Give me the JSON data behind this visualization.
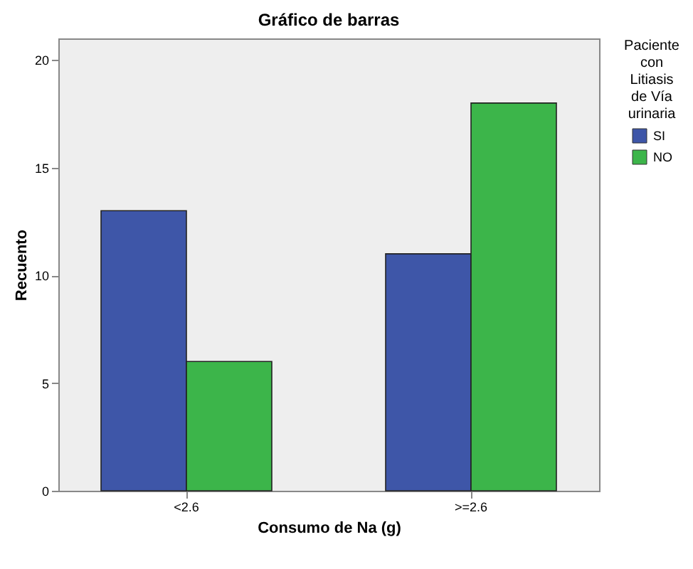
{
  "chart_data": {
    "type": "bar",
    "title": "Gráfico de barras",
    "xlabel": "Consumo de Na (g)",
    "ylabel": "Recuento",
    "legend_title": "Paciente con Litiasis de Vía urinaria",
    "categories": [
      "<2.6",
      ">=2.6"
    ],
    "series": [
      {
        "name": "SI",
        "color": "#3e56a8",
        "values": [
          13,
          11
        ]
      },
      {
        "name": "NO",
        "color": "#3cb54a",
        "values": [
          6,
          18
        ]
      }
    ],
    "ylim": [
      0,
      21
    ],
    "yticks": [
      0,
      5,
      10,
      15,
      20
    ],
    "grid": false,
    "legend": "right"
  }
}
